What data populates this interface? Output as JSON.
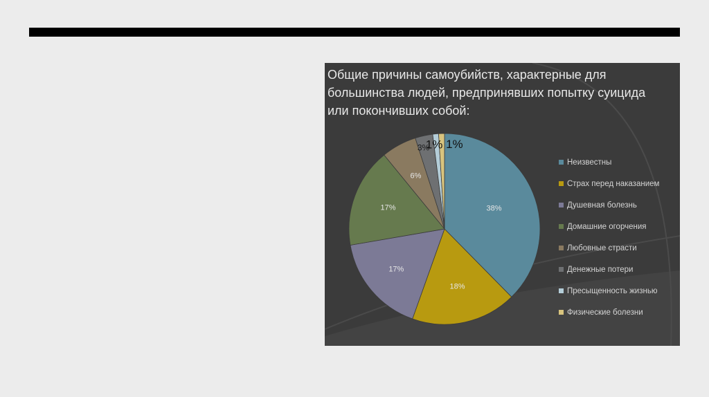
{
  "slide": {
    "background": "#ececec",
    "bar_color": "#000000"
  },
  "chart_data": {
    "type": "pie",
    "title_lines": [
      "Общие причины самоубийств, характерные для",
      "большинства людей, предпринявших попытку суицида",
      "или покончивших собой:"
    ],
    "categories": [
      "Неизвестны",
      "Страх перед наказанием",
      "Душевная болезнь",
      "Домашние огорчения",
      "Любовные страсти",
      "Денежные потери",
      "Пресыщенность жизнью",
      "Физические болезни"
    ],
    "values": [
      38,
      18,
      17,
      17,
      6,
      3,
      1,
      1
    ],
    "data_labels": [
      "38%",
      "18%",
      "17%",
      "17%",
      "6%",
      "3%",
      "1%",
      "1%"
    ],
    "colors": [
      "#5a8a9c",
      "#b89a10",
      "#7c7a96",
      "#667a4e",
      "#8a7a60",
      "#6e7072",
      "#b4cdd8",
      "#d8c47e"
    ],
    "legend_position": "right",
    "background": "#3b3b3b"
  }
}
